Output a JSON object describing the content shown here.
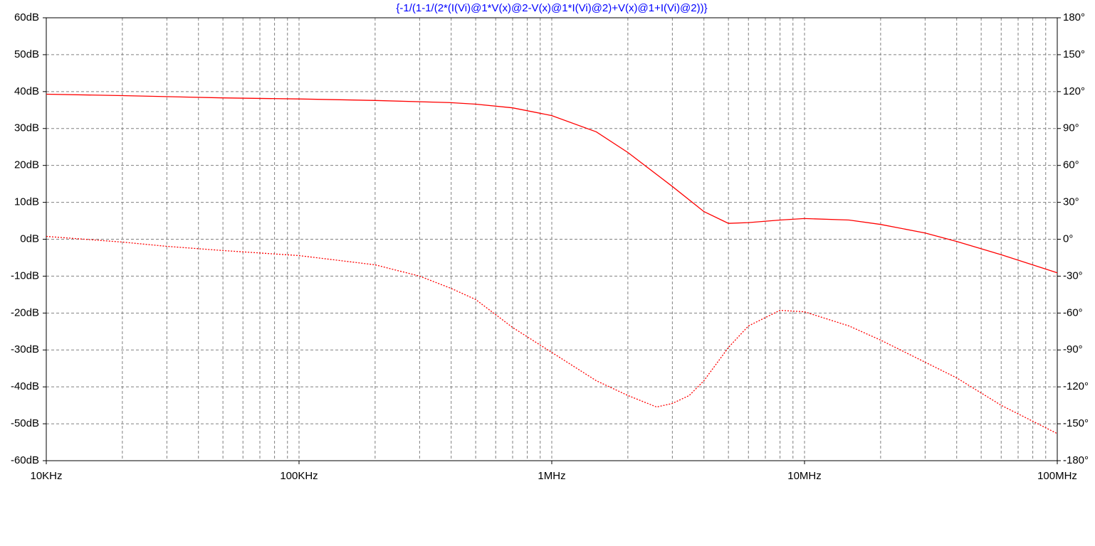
{
  "chart_data": {
    "type": "line",
    "title": "{-1/(1-1/(2*(I(Vi)@1*V(x)@2-V(x)@1*I(Vi)@2)+V(x)@1+I(Vi)@2))}",
    "xscale": "log",
    "xlim": [
      10000,
      100000000
    ],
    "xticks": [
      {
        "value": 10000,
        "label": "10KHz"
      },
      {
        "value": 100000,
        "label": "100KHz"
      },
      {
        "value": 1000000,
        "label": "1MHz"
      },
      {
        "value": 10000000,
        "label": "10MHz"
      },
      {
        "value": 100000000,
        "label": "100MHz"
      }
    ],
    "x_minor_grid": [
      20000,
      30000,
      40000,
      50000,
      60000,
      70000,
      80000,
      90000,
      200000,
      300000,
      400000,
      500000,
      600000,
      700000,
      800000,
      900000,
      2000000,
      3000000,
      4000000,
      5000000,
      6000000,
      7000000,
      8000000,
      9000000,
      20000000,
      30000000,
      40000000,
      50000000,
      60000000,
      70000000,
      80000000,
      90000000
    ],
    "ylim": [
      -60,
      60
    ],
    "yticks": [
      {
        "value": 60,
        "label": "60dB"
      },
      {
        "value": 50,
        "label": "50dB"
      },
      {
        "value": 40,
        "label": "40dB"
      },
      {
        "value": 30,
        "label": "30dB"
      },
      {
        "value": 20,
        "label": "20dB"
      },
      {
        "value": 10,
        "label": "10dB"
      },
      {
        "value": 0,
        "label": "0dB"
      },
      {
        "value": -10,
        "label": "-10dB"
      },
      {
        "value": -20,
        "label": "-20dB"
      },
      {
        "value": -30,
        "label": "-30dB"
      },
      {
        "value": -40,
        "label": "-40dB"
      },
      {
        "value": -50,
        "label": "-50dB"
      },
      {
        "value": -60,
        "label": "-60dB"
      }
    ],
    "y2lim": [
      -180,
      180
    ],
    "y2ticks": [
      {
        "value": 180,
        "label": "180°"
      },
      {
        "value": 150,
        "label": "150°"
      },
      {
        "value": 120,
        "label": "120°"
      },
      {
        "value": 90,
        "label": "90°"
      },
      {
        "value": 60,
        "label": "60°"
      },
      {
        "value": 30,
        "label": "30°"
      },
      {
        "value": 0,
        "label": "0°"
      },
      {
        "value": -30,
        "label": "-30°"
      },
      {
        "value": -60,
        "label": "-60°"
      },
      {
        "value": -90,
        "label": "-90°"
      },
      {
        "value": -120,
        "label": "-120°"
      },
      {
        "value": -150,
        "label": "-150°"
      },
      {
        "value": -180,
        "label": "-180°"
      }
    ],
    "grid": true,
    "series": [
      {
        "color": "#ff0000",
        "line_style": "solid",
        "x": [
          10000,
          20000,
          50000,
          100000,
          200000,
          400000,
          500000,
          700000,
          1000000,
          1500000,
          2000000,
          3000000,
          4000000,
          5000000,
          6000000,
          8000000,
          10000000,
          15000000,
          20000000,
          30000000,
          40000000,
          60000000,
          100000000
        ],
        "values": [
          39.3,
          38.9,
          38.3,
          38,
          37.6,
          37,
          36.6,
          35.6,
          33.5,
          29.1,
          23.5,
          14.3,
          7.5,
          4.3,
          4.5,
          5.2,
          5.6,
          5.2,
          4,
          1.7,
          -0.6,
          -4.2,
          -9.1
        ]
      },
      {
        "color": "#ff0000",
        "line_style": "dashed",
        "axis": "y2",
        "x": [
          10000,
          20000,
          30000,
          50000,
          100000,
          200000,
          300000,
          400000,
          500000,
          700000,
          1000000,
          1500000,
          2000000,
          2600000,
          3000000,
          3500000,
          4000000,
          5000000,
          6000000,
          8000000,
          10000000,
          15000000,
          20000000,
          40000000,
          60000000,
          100000000
        ],
        "values": [
          2.3,
          -2.3,
          -5.8,
          -9.2,
          -13.3,
          -20.8,
          -30,
          -40,
          -49,
          -71.7,
          -92,
          -115,
          -127,
          -136.4,
          -133.5,
          -127,
          -115,
          -88,
          -70.5,
          -57.8,
          -59,
          -70.5,
          -82,
          -112.7,
          -135,
          -158
        ]
      }
    ]
  }
}
